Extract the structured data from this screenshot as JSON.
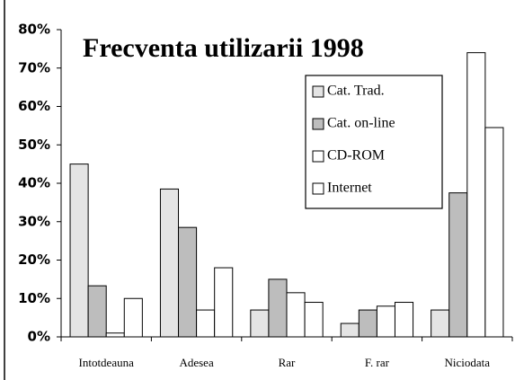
{
  "chart_data": {
    "type": "bar",
    "title": "Frecventa utilizarii  1998",
    "categories": [
      "Intotdeauna",
      "Adesea",
      "Rar",
      "F. rar",
      "Niciodata"
    ],
    "series": [
      {
        "name": "Cat. Trad.",
        "color": "#e4e4e4",
        "values": [
          45,
          38.5,
          7,
          3.5,
          7
        ]
      },
      {
        "name": "Cat. on-line",
        "color": "#bdbdbd",
        "values": [
          13.3,
          28.5,
          15,
          7,
          37.5
        ]
      },
      {
        "name": "CD-ROM",
        "color": "#ffffff",
        "values": [
          1,
          7,
          11.5,
          8,
          74
        ]
      },
      {
        "name": "Internet",
        "color": "#ffffff",
        "values": [
          10,
          18,
          9,
          9,
          54.5
        ]
      }
    ],
    "ylim": [
      0,
      80
    ],
    "yticks": [
      {
        "value": 0,
        "label": "0%"
      },
      {
        "value": 10,
        "label": "10%"
      },
      {
        "value": 20,
        "label": "20%"
      },
      {
        "value": 30,
        "label": "30%"
      },
      {
        "value": 40,
        "label": "40%"
      },
      {
        "value": 50,
        "label": "50%"
      },
      {
        "value": 60,
        "label": "60%"
      },
      {
        "value": 70,
        "label": "70%"
      },
      {
        "value": 80,
        "label": "80%"
      }
    ],
    "legend": "upper right",
    "grid": false
  }
}
